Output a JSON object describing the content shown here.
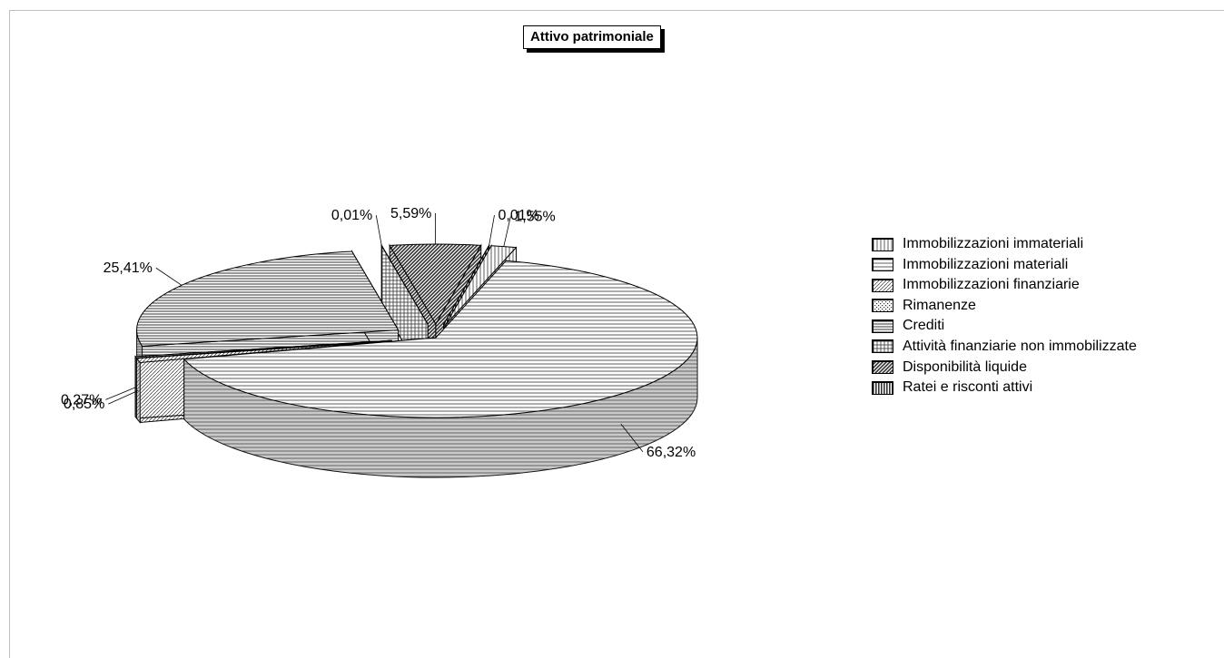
{
  "chart_data": {
    "type": "pie",
    "title": "Attivo patrimoniale",
    "labels": [
      "Immobilizzazioni immateriali",
      "Immobilizzazioni materiali",
      "Immobilizzazioni finanziarie",
      "Rimanenze",
      "Crediti",
      "Attività finanziarie non immobilizzate",
      "Disponibilità liquide",
      "Ratei e risconti attivi"
    ],
    "values": [
      1.55,
      66.32,
      0.85,
      0.27,
      25.41,
      0.01,
      5.59,
      0.01
    ],
    "value_labels": [
      "1,55%",
      "66,32%",
      "0,85%",
      "0,27%",
      "25,41%",
      "0,01%",
      "5,59%",
      "0,01%"
    ],
    "legend_position": "right",
    "exploded": true,
    "three_d": true,
    "colors": {
      "fill": "#ffffff",
      "pattern": "#333333",
      "outline": "#000000",
      "side_tint": "#666666"
    },
    "patterns": [
      "vertical-light",
      "horizontal",
      "diagonal-light",
      "dots",
      "horizontal-dense",
      "crosshatch",
      "diagonal-dark",
      "vertical-dark"
    ]
  }
}
